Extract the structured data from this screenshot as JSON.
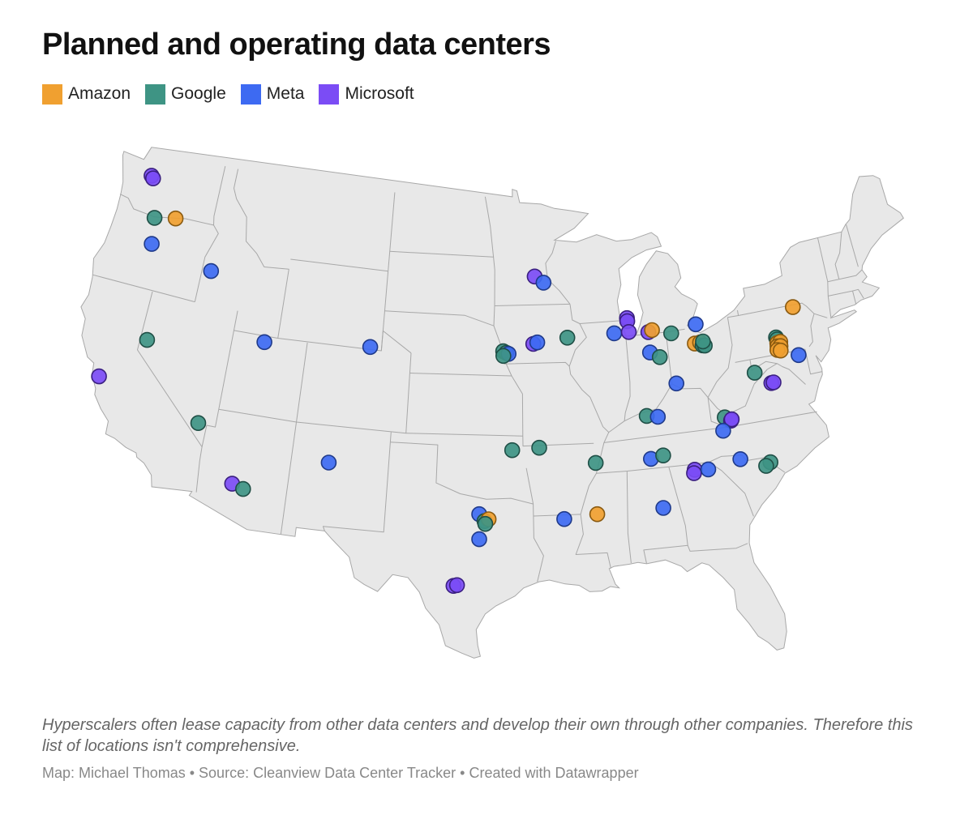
{
  "title": "Planned and operating data centers",
  "legend": [
    {
      "key": "amazon",
      "label": "Amazon",
      "color": "#f0a030"
    },
    {
      "key": "google",
      "label": "Google",
      "color": "#3e9484"
    },
    {
      "key": "meta",
      "label": "Meta",
      "color": "#3d6af2"
    },
    {
      "key": "microsoft",
      "label": "Microsoft",
      "color": "#7b4cf5"
    }
  ],
  "map": {
    "region": "Contiguous United States",
    "land_color": "#e8e8e8",
    "border_color": "#a8a8a8",
    "locations": [
      {
        "company": "microsoft",
        "lon": -122.21,
        "lat": 47.61
      },
      {
        "company": "microsoft",
        "lon": -122.05,
        "lat": 47.5
      },
      {
        "company": "google",
        "lon": -121.18,
        "lat": 45.6
      },
      {
        "company": "amazon",
        "lon": -119.7,
        "lat": 45.84
      },
      {
        "company": "meta",
        "lon": -120.89,
        "lat": 44.3
      },
      {
        "company": "meta",
        "lon": -116.4,
        "lat": 43.68
      },
      {
        "company": "google",
        "lon": -119.55,
        "lat": 39.6
      },
      {
        "company": "microsoft",
        "lon": -121.95,
        "lat": 37.23
      },
      {
        "company": "meta",
        "lon": -111.9,
        "lat": 40.7
      },
      {
        "company": "meta",
        "lon": -104.82,
        "lat": 41.14
      },
      {
        "company": "google",
        "lon": -115.15,
        "lat": 36.13
      },
      {
        "company": "microsoft",
        "lon": -112.4,
        "lat": 33.47
      },
      {
        "company": "google",
        "lon": -111.69,
        "lat": 33.3
      },
      {
        "company": "meta",
        "lon": -106.72,
        "lat": 35.2
      },
      {
        "company": "google",
        "lon": -95.86,
        "lat": 41.23
      },
      {
        "company": "google",
        "lon": -95.65,
        "lat": 41.15
      },
      {
        "company": "meta",
        "lon": -95.5,
        "lat": 41.1
      },
      {
        "company": "google",
        "lon": -95.85,
        "lat": 41.0
      },
      {
        "company": "microsoft",
        "lon": -93.82,
        "lat": 41.58
      },
      {
        "company": "meta",
        "lon": -93.55,
        "lat": 41.65
      },
      {
        "company": "google",
        "lon": -91.5,
        "lat": 41.83
      },
      {
        "company": "microsoft",
        "lon": -93.61,
        "lat": 44.95
      },
      {
        "company": "meta",
        "lon": -93.0,
        "lat": 44.63
      },
      {
        "company": "meta",
        "lon": -88.3,
        "lat": 41.9
      },
      {
        "company": "microsoft",
        "lon": -87.34,
        "lat": 42.6
      },
      {
        "company": "microsoft",
        "lon": -87.34,
        "lat": 42.45
      },
      {
        "company": "microsoft",
        "lon": -87.3,
        "lat": 41.9
      },
      {
        "company": "microsoft",
        "lon": -85.98,
        "lat": 41.8
      },
      {
        "company": "amazon",
        "lon": -85.72,
        "lat": 41.88
      },
      {
        "company": "google",
        "lon": -84.45,
        "lat": 41.61
      },
      {
        "company": "meta",
        "lon": -82.72,
        "lat": 41.9
      },
      {
        "company": "meta",
        "lon": -86.01,
        "lat": 40.78
      },
      {
        "company": "google",
        "lon": -85.4,
        "lat": 40.5
      },
      {
        "company": "amazon",
        "lon": -82.96,
        "lat": 40.95
      },
      {
        "company": "amazon",
        "lon": -82.6,
        "lat": 40.97
      },
      {
        "company": "google",
        "lon": -82.46,
        "lat": 40.81
      },
      {
        "company": "google",
        "lon": -82.32,
        "lat": 40.78
      },
      {
        "company": "google",
        "lon": -82.4,
        "lat": 41.0
      },
      {
        "company": "meta",
        "lon": -84.51,
        "lat": 39.1
      },
      {
        "company": "amazon",
        "lon": -76.01,
        "lat": 41.9
      },
      {
        "company": "google",
        "lon": -77.53,
        "lat": 40.58
      },
      {
        "company": "google",
        "lon": -77.48,
        "lat": 40.48
      },
      {
        "company": "amazon",
        "lon": -77.52,
        "lat": 40.3
      },
      {
        "company": "amazon",
        "lon": -77.31,
        "lat": 40.33
      },
      {
        "company": "amazon",
        "lon": -77.55,
        "lat": 40.14
      },
      {
        "company": "amazon",
        "lon": -77.35,
        "lat": 40.12
      },
      {
        "company": "amazon",
        "lon": -77.6,
        "lat": 39.96
      },
      {
        "company": "amazon",
        "lon": -77.4,
        "lat": 39.9
      },
      {
        "company": "meta",
        "lon": -76.3,
        "lat": 39.5
      },
      {
        "company": "google",
        "lon": -79.35,
        "lat": 39.05
      },
      {
        "company": "microsoft",
        "lon": -78.4,
        "lat": 38.4
      },
      {
        "company": "microsoft",
        "lon": -78.25,
        "lat": 38.41
      },
      {
        "company": "google",
        "lon": -86.65,
        "lat": 37.65
      },
      {
        "company": "meta",
        "lon": -85.95,
        "lat": 37.55
      },
      {
        "company": "google",
        "lon": -81.72,
        "lat": 37.1
      },
      {
        "company": "microsoft",
        "lon": -81.35,
        "lat": 36.89
      },
      {
        "company": "microsoft",
        "lon": -81.3,
        "lat": 36.95
      },
      {
        "company": "meta",
        "lon": -81.94,
        "lat": 36.45
      },
      {
        "company": "google",
        "lon": -95.3,
        "lat": 36.3
      },
      {
        "company": "google",
        "lon": -93.6,
        "lat": 36.4
      },
      {
        "company": "google",
        "lon": -90.1,
        "lat": 35.52
      },
      {
        "company": "meta",
        "lon": -86.65,
        "lat": 35.5
      },
      {
        "company": "google",
        "lon": -85.87,
        "lat": 35.61
      },
      {
        "company": "microsoft",
        "lon": -84.03,
        "lat": 34.72
      },
      {
        "company": "microsoft",
        "lon": -84.1,
        "lat": 34.55
      },
      {
        "company": "meta",
        "lon": -83.2,
        "lat": 34.65
      },
      {
        "company": "meta",
        "lon": -81.15,
        "lat": 34.92
      },
      {
        "company": "google",
        "lon": -79.35,
        "lat": 34.52
      },
      {
        "company": "google",
        "lon": -79.65,
        "lat": 34.38
      },
      {
        "company": "meta",
        "lon": -97.32,
        "lat": 33.1
      },
      {
        "company": "google",
        "lon": -97.0,
        "lat": 32.76
      },
      {
        "company": "amazon",
        "lon": -96.75,
        "lat": 32.85
      },
      {
        "company": "google",
        "lon": -96.95,
        "lat": 32.62
      },
      {
        "company": "meta",
        "lon": -97.3,
        "lat": 31.85
      },
      {
        "company": "microsoft",
        "lon": -98.75,
        "lat": 29.48
      },
      {
        "company": "microsoft",
        "lon": -98.55,
        "lat": 29.52
      },
      {
        "company": "meta",
        "lon": -92.2,
        "lat": 32.8
      },
      {
        "company": "amazon",
        "lon": -90.2,
        "lat": 32.96
      },
      {
        "company": "meta",
        "lon": -86.2,
        "lat": 33.0
      }
    ]
  },
  "note": "Hyperscalers often lease capacity from other data centers and develop their own through other companies. Therefore this list of locations isn't comprehensive.",
  "credit": "Map: Michael Thomas • Source: Cleanview Data Center Tracker • Created with Datawrapper"
}
